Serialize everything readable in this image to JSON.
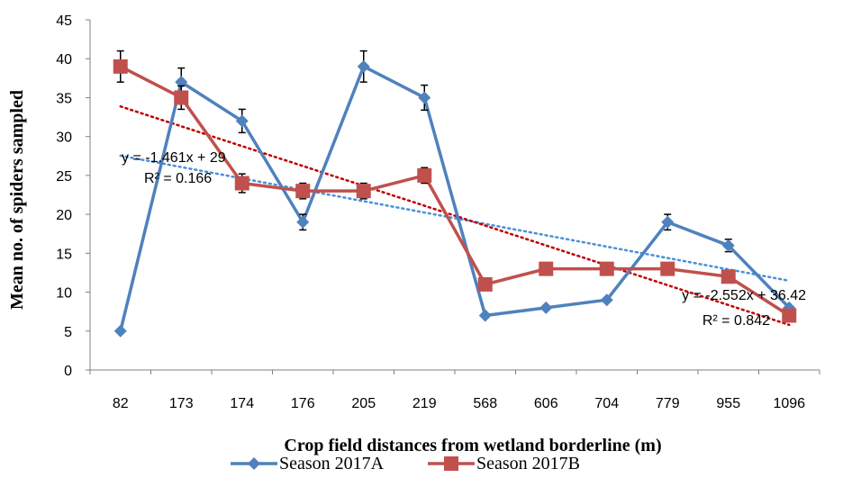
{
  "chart_data": {
    "type": "line",
    "xlabel": "Crop field distances from wetland borderline (m)",
    "ylabel": "Mean no. of spiders sampled",
    "ylim": [
      0,
      45
    ],
    "yticks": [
      0,
      5,
      10,
      15,
      20,
      25,
      30,
      35,
      40,
      45
    ],
    "categories": [
      "82",
      "173",
      "174",
      "176",
      "205",
      "219",
      "568",
      "606",
      "704",
      "779",
      "955",
      "1096"
    ],
    "series": [
      {
        "name": "Season 2017A",
        "color": "#4F81BD",
        "marker": "diamond",
        "values": [
          5,
          37,
          32,
          19,
          39,
          35,
          7,
          8,
          9,
          19,
          16,
          8
        ],
        "error": [
          0,
          1.8,
          1.5,
          1.0,
          2.0,
          1.6,
          0,
          0,
          0,
          1.0,
          0.8,
          0
        ]
      },
      {
        "name": "Season 2017B",
        "color": "#C0504D",
        "marker": "square",
        "values": [
          39,
          35,
          24,
          23,
          23,
          25,
          11,
          13,
          13,
          13,
          12,
          7
        ],
        "error": [
          2.0,
          1.5,
          1.2,
          1.0,
          1.0,
          1.0,
          0,
          0,
          0,
          0,
          0,
          0
        ]
      }
    ],
    "trendlines": [
      {
        "series": "Season 2017A",
        "equation": "y = -1.461x + 29",
        "r2": "R² = 0.166",
        "slope": -1.461,
        "intercept": 29
      },
      {
        "series": "Season 2017B",
        "equation": "y = -2.552x + 36.42",
        "r2": "R² = 0.842",
        "slope": -2.552,
        "intercept": 36.42
      }
    ],
    "legend": "bottom",
    "grid": false
  }
}
